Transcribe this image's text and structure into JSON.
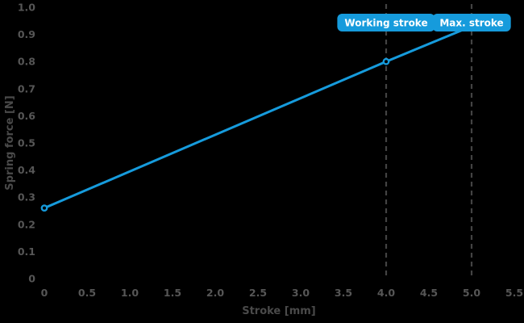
{
  "chart_data": {
    "type": "line",
    "title": "",
    "xlabel": "Stroke [mm]",
    "ylabel": "Spring force [N]",
    "xlim": [
      0,
      5.5
    ],
    "ylim": [
      0,
      1.0
    ],
    "grid": false,
    "legend": "none",
    "x_tick_labels": [
      "0",
      "0.5",
      "1.0",
      "1.5",
      "2.0",
      "2.5",
      "3.0",
      "3.5",
      "4.0",
      "4.5",
      "5.0",
      "5.5"
    ],
    "y_tick_labels": [
      "0",
      "0.1",
      "0.2",
      "0.3",
      "0.4",
      "0.5",
      "0.6",
      "0.7",
      "0.8",
      "0.9",
      "1.0"
    ],
    "series": [
      {
        "name": "Spring force",
        "points": [
          [
            0,
            0.26
          ],
          [
            4,
            0.8
          ],
          [
            5,
            0.93
          ]
        ],
        "marker_points": [
          [
            0,
            0.26
          ],
          [
            4,
            0.8
          ]
        ],
        "marker": "open-circle"
      }
    ],
    "annotations": [
      {
        "label": "Working stroke",
        "x": 4.0
      },
      {
        "label": "Max. stroke",
        "x": 5.0
      }
    ],
    "colors": {
      "background": "#000000",
      "line": "#169bdc",
      "badge_fill": "#169bdc",
      "badge_text": "#ffffff",
      "tick_text": "#565656",
      "axis_title_text": "#4a4a4a",
      "dashed_line": "#434343",
      "marker_fill": "#000000"
    }
  }
}
